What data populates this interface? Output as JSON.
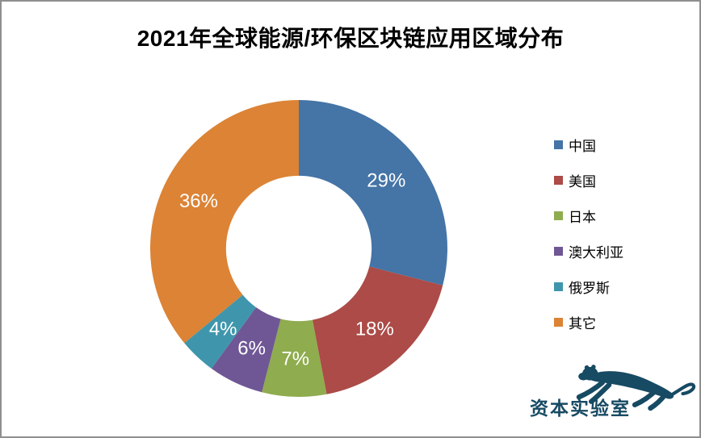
{
  "page": {
    "background": "#FFFFFF",
    "border_color": "#8F8F8F"
  },
  "title": "2021年全球能源/环保区块链应用区域分布",
  "chart_data": {
    "type": "pie",
    "subtype": "donut",
    "title": "2021年全球能源/环保区块链应用区域分布",
    "start_angle_deg": 0,
    "direction": "clockwise",
    "categories": [
      "中国",
      "美国",
      "日本",
      "澳大利亚",
      "俄罗斯",
      "其它"
    ],
    "values": [
      29,
      18,
      7,
      6,
      4,
      36
    ],
    "labels": [
      "29%",
      "18%",
      "7%",
      "6%",
      "4%",
      "36%"
    ],
    "colors": [
      "#4574A6",
      "#AC4B47",
      "#8FAC4E",
      "#6F5795",
      "#3F96AC",
      "#DC8335"
    ],
    "label_color": "#FFFFFF",
    "legend_position": "right",
    "inner_radius_ratio": 0.49
  },
  "logo": {
    "text": "资本实验室",
    "color": "#174A63",
    "icon": "leaping-leopard-icon"
  }
}
